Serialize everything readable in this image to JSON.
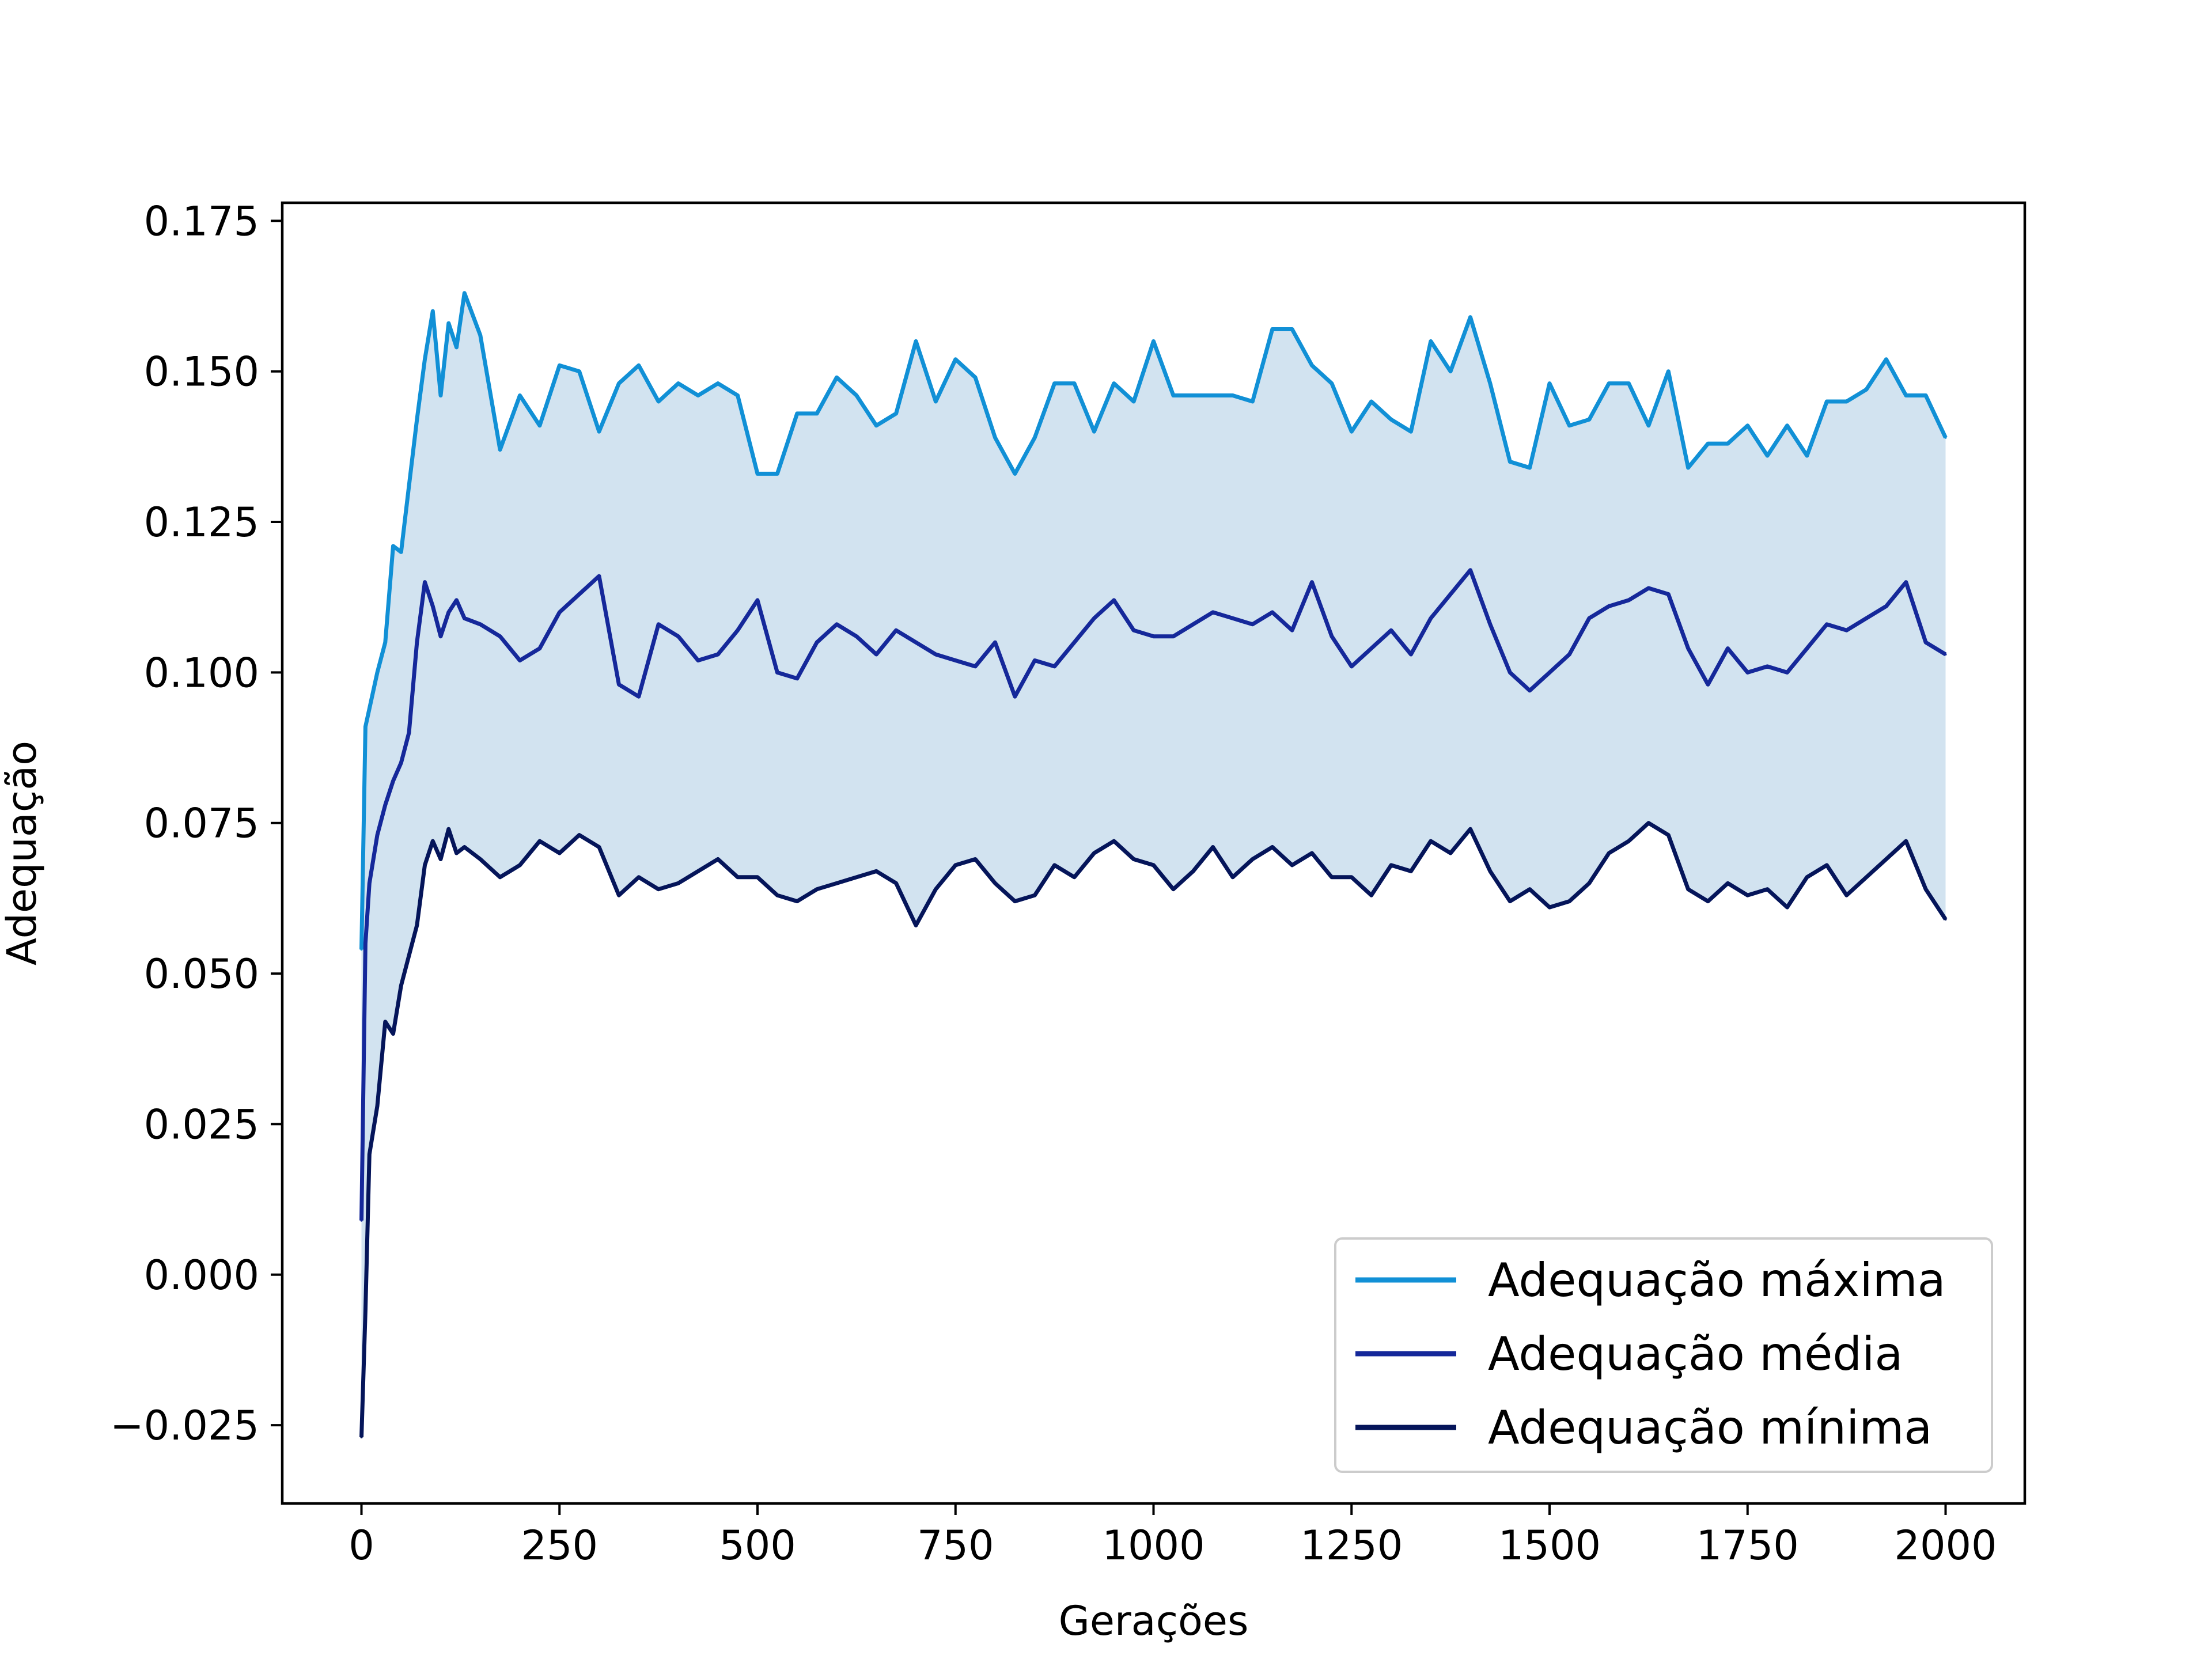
{
  "chart_data": {
    "type": "line",
    "title": "",
    "xlabel": "Gerações",
    "ylabel": "Adequação",
    "xlim": [
      -100,
      2100
    ],
    "ylim": [
      -0.038,
      0.178
    ],
    "xticks": [
      0,
      250,
      500,
      750,
      1000,
      1250,
      1500,
      1750,
      2000
    ],
    "xtick_labels": [
      "0",
      "250",
      "500",
      "750",
      "1000",
      "1250",
      "1500",
      "1750",
      "2000"
    ],
    "yticks": [
      -0.025,
      0,
      0.025,
      0.05,
      0.075,
      0.1,
      0.125,
      0.15,
      0.175
    ],
    "ytick_labels": [
      "−0.025",
      "0.000",
      "0.025",
      "0.050",
      "0.075",
      "0.100",
      "0.125",
      "0.150",
      "0.175"
    ],
    "grid": false,
    "legend_position": "lower-right",
    "band_fill": "#d2e3f0",
    "series": [
      {
        "name": "Adequação máxima",
        "color": "#1190d6",
        "x": [
          0,
          5,
          10,
          20,
          30,
          40,
          50,
          60,
          70,
          80,
          90,
          100,
          110,
          120,
          130,
          150,
          175,
          200,
          225,
          250,
          275,
          300,
          325,
          350,
          375,
          400,
          425,
          450,
          475,
          500,
          525,
          550,
          575,
          600,
          625,
          650,
          675,
          700,
          725,
          750,
          775,
          800,
          825,
          850,
          875,
          900,
          925,
          950,
          975,
          1000,
          1025,
          1050,
          1075,
          1100,
          1125,
          1150,
          1175,
          1200,
          1225,
          1250,
          1275,
          1300,
          1325,
          1350,
          1375,
          1400,
          1425,
          1450,
          1475,
          1500,
          1525,
          1550,
          1575,
          1600,
          1625,
          1650,
          1675,
          1700,
          1725,
          1750,
          1775,
          1800,
          1825,
          1850,
          1875,
          1900,
          1925,
          1950,
          1975,
          2000
        ],
        "values": [
          0.054,
          0.091,
          0.094,
          0.1,
          0.105,
          0.121,
          0.12,
          0.131,
          0.142,
          0.152,
          0.16,
          0.146,
          0.158,
          0.154,
          0.163,
          0.156,
          0.137,
          0.146,
          0.141,
          0.151,
          0.15,
          0.14,
          0.148,
          0.151,
          0.145,
          0.148,
          0.146,
          0.148,
          0.146,
          0.133,
          0.133,
          0.143,
          0.143,
          0.149,
          0.146,
          0.141,
          0.143,
          0.155,
          0.145,
          0.152,
          0.149,
          0.139,
          0.133,
          0.139,
          0.148,
          0.148,
          0.14,
          0.148,
          0.145,
          0.155,
          0.146,
          0.146,
          0.146,
          0.146,
          0.145,
          0.157,
          0.157,
          0.151,
          0.148,
          0.14,
          0.145,
          0.142,
          0.14,
          0.155,
          0.15,
          0.159,
          0.148,
          0.135,
          0.134,
          0.148,
          0.141,
          0.142,
          0.148,
          0.148,
          0.141,
          0.15,
          0.134,
          0.138,
          0.138,
          0.141,
          0.136,
          0.141,
          0.136,
          0.145,
          0.145,
          0.147,
          0.152,
          0.146,
          0.146,
          0.139
        ]
      },
      {
        "name": "Adequação média",
        "color": "#15289a",
        "x": [
          0,
          5,
          10,
          20,
          30,
          40,
          50,
          60,
          70,
          80,
          90,
          100,
          110,
          120,
          130,
          150,
          175,
          200,
          225,
          250,
          275,
          300,
          325,
          350,
          375,
          400,
          425,
          450,
          475,
          500,
          525,
          550,
          575,
          600,
          625,
          650,
          675,
          700,
          725,
          750,
          775,
          800,
          825,
          850,
          875,
          900,
          925,
          950,
          975,
          1000,
          1025,
          1050,
          1075,
          1100,
          1125,
          1150,
          1175,
          1200,
          1225,
          1250,
          1275,
          1300,
          1325,
          1350,
          1375,
          1400,
          1425,
          1450,
          1475,
          1500,
          1525,
          1550,
          1575,
          1600,
          1625,
          1650,
          1675,
          1700,
          1725,
          1750,
          1775,
          1800,
          1825,
          1850,
          1875,
          1900,
          1925,
          1950,
          1975,
          2000
        ],
        "values": [
          0.009,
          0.055,
          0.065,
          0.073,
          0.078,
          0.082,
          0.085,
          0.09,
          0.105,
          0.115,
          0.111,
          0.106,
          0.11,
          0.112,
          0.109,
          0.108,
          0.106,
          0.102,
          0.104,
          0.11,
          0.113,
          0.116,
          0.098,
          0.096,
          0.108,
          0.106,
          0.102,
          0.103,
          0.107,
          0.112,
          0.1,
          0.099,
          0.105,
          0.108,
          0.106,
          0.103,
          0.107,
          0.105,
          0.103,
          0.102,
          0.101,
          0.105,
          0.096,
          0.102,
          0.101,
          0.105,
          0.109,
          0.112,
          0.107,
          0.106,
          0.106,
          0.108,
          0.11,
          0.109,
          0.108,
          0.11,
          0.107,
          0.115,
          0.106,
          0.101,
          0.104,
          0.107,
          0.103,
          0.109,
          0.113,
          0.117,
          0.108,
          0.1,
          0.097,
          0.1,
          0.103,
          0.109,
          0.111,
          0.112,
          0.114,
          0.113,
          0.104,
          0.098,
          0.104,
          0.1,
          0.101,
          0.1,
          0.104,
          0.108,
          0.107,
          0.109,
          0.111,
          0.115,
          0.105,
          0.103
        ]
      },
      {
        "name": "Adequação mínima",
        "color": "#05155a",
        "x": [
          0,
          5,
          10,
          20,
          30,
          40,
          50,
          60,
          70,
          80,
          90,
          100,
          110,
          120,
          130,
          150,
          175,
          200,
          225,
          250,
          275,
          300,
          325,
          350,
          375,
          400,
          425,
          450,
          475,
          500,
          525,
          550,
          575,
          600,
          625,
          650,
          675,
          700,
          725,
          750,
          775,
          800,
          825,
          850,
          875,
          900,
          925,
          950,
          975,
          1000,
          1025,
          1050,
          1075,
          1100,
          1125,
          1150,
          1175,
          1200,
          1225,
          1250,
          1275,
          1300,
          1325,
          1350,
          1375,
          1400,
          1425,
          1450,
          1475,
          1500,
          1525,
          1550,
          1575,
          1600,
          1625,
          1650,
          1675,
          1700,
          1725,
          1750,
          1775,
          1800,
          1825,
          1850,
          1875,
          1900,
          1925,
          1950,
          1975,
          2000
        ],
        "values": [
          -0.027,
          -0.006,
          0.02,
          0.028,
          0.042,
          0.04,
          0.048,
          0.053,
          0.058,
          0.068,
          0.072,
          0.069,
          0.074,
          0.07,
          0.071,
          0.069,
          0.066,
          0.068,
          0.072,
          0.07,
          0.073,
          0.071,
          0.063,
          0.066,
          0.064,
          0.065,
          0.067,
          0.069,
          0.066,
          0.066,
          0.063,
          0.062,
          0.064,
          0.065,
          0.066,
          0.067,
          0.065,
          0.058,
          0.064,
          0.068,
          0.069,
          0.065,
          0.062,
          0.063,
          0.068,
          0.066,
          0.07,
          0.072,
          0.069,
          0.068,
          0.064,
          0.067,
          0.071,
          0.066,
          0.069,
          0.071,
          0.068,
          0.07,
          0.066,
          0.066,
          0.063,
          0.068,
          0.067,
          0.072,
          0.07,
          0.074,
          0.067,
          0.062,
          0.064,
          0.061,
          0.062,
          0.065,
          0.07,
          0.072,
          0.075,
          0.073,
          0.064,
          0.062,
          0.065,
          0.063,
          0.064,
          0.061,
          0.066,
          0.068,
          0.063,
          0.066,
          0.069,
          0.072,
          0.064,
          0.059
        ]
      }
    ]
  }
}
